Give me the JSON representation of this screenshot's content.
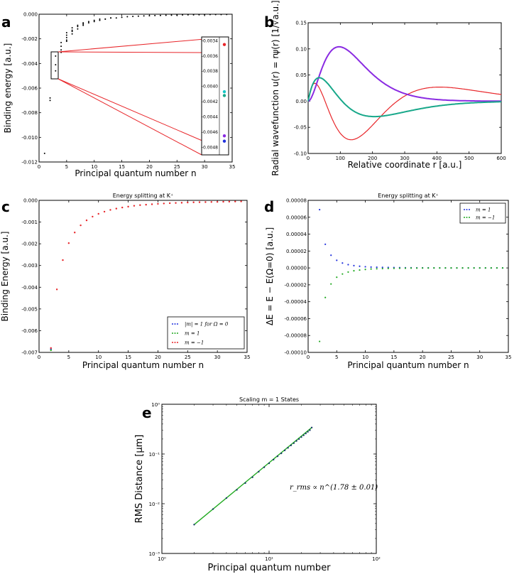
{
  "panels": {
    "a": {
      "letter": "a"
    },
    "b": {
      "letter": "b"
    },
    "c": {
      "letter": "c"
    },
    "d": {
      "letter": "d"
    },
    "e": {
      "letter": "e"
    }
  },
  "colors": {
    "red": "#e8262a",
    "purple": "#8a2be2",
    "teal": "#18a88a",
    "blue": "#2233dd",
    "green": "#22aa22",
    "black": "#000000"
  },
  "chart_data": [
    {
      "id": "a",
      "type": "scatter",
      "title": "",
      "xlabel": "Principal quantum number n",
      "ylabel": "Binding energy [a.u.]",
      "xlim": [
        0,
        35
      ],
      "ylim": [
        -0.012,
        0.0
      ],
      "xticks": [
        "0",
        "5",
        "10",
        "15",
        "20",
        "25",
        "30",
        "35"
      ],
      "yticks": [
        "0.000",
        "-0.002",
        "-0.004",
        "-0.006",
        "-0.008",
        "-0.010",
        "-0.012"
      ],
      "series": [
        {
          "name": "levels",
          "color": "#000000",
          "x": [
            1,
            2,
            2,
            3,
            3,
            3,
            4,
            4,
            4,
            4,
            5,
            5,
            5,
            5,
            5,
            6,
            6,
            6,
            6,
            7,
            7,
            7,
            8,
            8,
            8,
            9,
            9,
            10,
            10,
            11,
            11,
            12,
            12,
            13,
            13,
            14,
            15,
            16,
            17,
            18,
            19,
            20,
            21,
            22,
            23,
            24,
            25,
            26,
            27,
            28,
            29,
            30,
            31,
            32,
            33,
            34
          ],
          "y": [
            -0.0113,
            -0.0068,
            -0.007,
            -0.0034,
            -0.0041,
            -0.0046,
            -0.0023,
            -0.0026,
            -0.0029,
            -0.0031,
            -0.0015,
            -0.0017,
            -0.0019,
            -0.0021,
            -0.0022,
            -0.0011,
            -0.0013,
            -0.0014,
            -0.0016,
            -0.0009,
            -0.001,
            -0.0012,
            -0.0007,
            -0.0008,
            -0.0009,
            -0.0006,
            -0.0007,
            -0.0005,
            -0.0006,
            -0.0004,
            -0.0005,
            -0.0004,
            -0.0004,
            -0.0003,
            -0.0003,
            -0.0003,
            -0.00025,
            -0.0002,
            -0.00018,
            -0.00016,
            -0.00014,
            -0.00012,
            -0.00011,
            -0.0001,
            -9e-05,
            -8e-05,
            -7e-05,
            -6e-05,
            -5e-05,
            -5e-05,
            -4e-05,
            -4e-05,
            -3e-05,
            -3e-05,
            -3e-05,
            -2e-05
          ]
        }
      ],
      "inset": {
        "yticks": [
          "-0.0034",
          "-0.0036",
          "-0.0038",
          "-0.0040",
          "-0.0042",
          "-0.0044",
          "-0.0046",
          "-0.0048"
        ],
        "ylim": [
          -0.0049,
          -0.00335
        ],
        "points": [
          {
            "y": -0.00345,
            "color": "#e8262a"
          },
          {
            "y": -0.00407,
            "color": "#18c8c8"
          },
          {
            "y": -0.00412,
            "color": "#18a88a"
          },
          {
            "y": -0.00465,
            "color": "#8a2be2"
          },
          {
            "y": -0.00472,
            "color": "#2233dd"
          }
        ]
      }
    },
    {
      "id": "b",
      "type": "line",
      "title": "",
      "xlabel": "Relative coordinate r [a.u.]",
      "ylabel": "Radial wavefunction u(r) = rψ(r) [1/√a.u.]",
      "xlim": [
        0,
        600
      ],
      "ylim": [
        -0.1,
        0.15
      ],
      "xticks": [
        "0",
        "100",
        "200",
        "300",
        "400",
        "500",
        "600"
      ],
      "yticks": [
        "0.15",
        "0.10",
        "0.05",
        "0.00",
        "-0.05",
        "-0.10"
      ],
      "series": [
        {
          "name": "red",
          "color": "#e8262a",
          "kind": "n3l0"
        },
        {
          "name": "purple",
          "color": "#8a2be2",
          "kind": "n2l1"
        },
        {
          "name": "teal",
          "color": "#18a88a",
          "kind": "n2l0"
        }
      ]
    },
    {
      "id": "c",
      "type": "scatter",
      "title": "Energy splitting at K⁺",
      "xlabel": "Principal quantum number n",
      "ylabel": "Binding Energy [a.u.]",
      "xlim": [
        0,
        35
      ],
      "ylim": [
        -0.007,
        0.0
      ],
      "xticks": [
        "0",
        "5",
        "10",
        "15",
        "20",
        "25",
        "30",
        "35"
      ],
      "yticks": [
        "0.000",
        "-0.001",
        "-0.002",
        "-0.003",
        "-0.004",
        "-0.005",
        "-0.006",
        "-0.007"
      ],
      "legend": {
        "position": "lower-right",
        "entries": [
          "|m| = 1 for Ω = 0",
          "m = 1",
          "m = −1"
        ]
      },
      "series": [
        {
          "name": "|m| = 1 for Ω = 0",
          "color": "#2233dd",
          "x": [
            2
          ],
          "y": [
            -0.00685
          ]
        },
        {
          "name": "m = 1",
          "color": "#22aa22",
          "x": [
            2
          ],
          "y": [
            -0.0069
          ]
        },
        {
          "name": "m = −1",
          "color": "#e8262a",
          "x": [
            2,
            3,
            4,
            5,
            6,
            7,
            8,
            9,
            10,
            11,
            12,
            13,
            14,
            15,
            16,
            17,
            18,
            19,
            20,
            21,
            22,
            23,
            24,
            25,
            26,
            27,
            28,
            29,
            30,
            31,
            32,
            33,
            34
          ],
          "y": [
            -0.0068,
            -0.0041,
            -0.00275,
            -0.00197,
            -0.00148,
            -0.00115,
            -0.00092,
            -0.00075,
            -0.00062,
            -0.00052,
            -0.00044,
            -0.00038,
            -0.00033,
            -0.00029,
            -0.00025,
            -0.00022,
            -0.0002,
            -0.00018,
            -0.00016,
            -0.000145,
            -0.00013,
            -0.00012,
            -0.00011,
            -0.0001,
            -9e-05,
            -8.5e-05,
            -8e-05,
            -7.5e-05,
            -7e-05,
            -6.5e-05,
            -6e-05,
            -5.5e-05,
            -5e-05
          ]
        }
      ]
    },
    {
      "id": "d",
      "type": "scatter",
      "title": "Energy splitting at K⁺",
      "xlabel": "Principal quantum number n",
      "ylabel": "ΔE = E − E(Ω=0) [a.u.]",
      "xlim": [
        0,
        35
      ],
      "ylim": [
        -0.0001,
        8e-05
      ],
      "xticks": [
        "0",
        "5",
        "10",
        "15",
        "20",
        "25",
        "30",
        "35"
      ],
      "yticks": [
        "0.00008",
        "0.00006",
        "0.00004",
        "0.00002",
        "0.00000",
        "-0.00002",
        "-0.00004",
        "-0.00006",
        "-0.00008",
        "-0.00010"
      ],
      "legend": {
        "position": "top-right",
        "entries": [
          "m = 1",
          "m = −1"
        ]
      },
      "series": [
        {
          "name": "m = 1",
          "color": "#2233dd",
          "x": [
            2,
            3,
            4,
            5,
            6,
            7,
            8,
            9,
            10,
            11,
            12,
            13,
            14,
            15,
            16,
            17,
            18,
            19,
            20,
            21,
            22,
            23,
            24,
            25,
            26,
            27,
            28,
            29,
            30,
            31,
            32,
            33,
            34
          ],
          "y": [
            6.9e-05,
            2.8e-05,
            1.5e-05,
            9e-06,
            5.8e-06,
            3.9e-06,
            2.7e-06,
            2e-06,
            1.4e-06,
            1e-06,
            8e-07,
            6e-07,
            5e-07,
            4e-07,
            3e-07,
            2e-07,
            2e-07,
            1e-07,
            1e-07,
            1e-07,
            0.0,
            0.0,
            0.0,
            0.0,
            0.0,
            0.0,
            0.0,
            0.0,
            0.0,
            0.0,
            0.0,
            0.0,
            0.0
          ]
        },
        {
          "name": "m = −1",
          "color": "#22aa22",
          "x": [
            2,
            3,
            4,
            5,
            6,
            7,
            8,
            9,
            10,
            11,
            12,
            13,
            14,
            15,
            16,
            17,
            18,
            19,
            20,
            21,
            22,
            23,
            24,
            25,
            26,
            27,
            28,
            29,
            30,
            31,
            32,
            33,
            34
          ],
          "y": [
            -8.7e-05,
            -3.5e-05,
            -1.9e-05,
            -1.1e-05,
            -7.2e-06,
            -4.9e-06,
            -3.4e-06,
            -2.5e-06,
            -1.8e-06,
            -1.3e-06,
            -1e-06,
            -8e-07,
            -6e-07,
            -5e-07,
            -4e-07,
            -3e-07,
            -2e-07,
            -2e-07,
            -1e-07,
            -1e-07,
            0.0,
            0.0,
            0.0,
            0.0,
            0.0,
            0.0,
            0.0,
            0.0,
            0.0,
            0.0,
            0.0,
            0.0,
            0.0
          ]
        }
      ]
    },
    {
      "id": "e",
      "type": "line",
      "title": "Scaling m = 1 States",
      "xlabel": "Principal quantum number",
      "ylabel": "RMS Distance [μm]",
      "xscale": "log",
      "yscale": "log",
      "xlim": [
        1,
        100
      ],
      "ylim": [
        0.001,
        1
      ],
      "xticks": [
        "10⁰",
        "10¹",
        "10²"
      ],
      "yticks": [
        "10⁰",
        "10⁻¹",
        "10⁻²",
        "10⁻³"
      ],
      "annotation": "r_rms ∝ n^(1.78 ± 0.01)",
      "series": [
        {
          "name": "fit",
          "color": "#22aa22",
          "x": [
            2,
            25
          ],
          "y": [
            0.0038,
            0.34
          ]
        },
        {
          "name": "data",
          "color": "#1a3a6a",
          "x": [
            2,
            3,
            4,
            5,
            6,
            7,
            8,
            9,
            10,
            11,
            12,
            13,
            14,
            15,
            16,
            17,
            18,
            19,
            20,
            21,
            22,
            23,
            24,
            25
          ],
          "y": [
            0.0038,
            0.0078,
            0.013,
            0.019,
            0.026,
            0.034,
            0.044,
            0.054,
            0.065,
            0.077,
            0.09,
            0.103,
            0.118,
            0.133,
            0.149,
            0.165,
            0.183,
            0.2,
            0.219,
            0.238,
            0.258,
            0.279,
            0.301,
            0.34
          ]
        }
      ]
    }
  ]
}
